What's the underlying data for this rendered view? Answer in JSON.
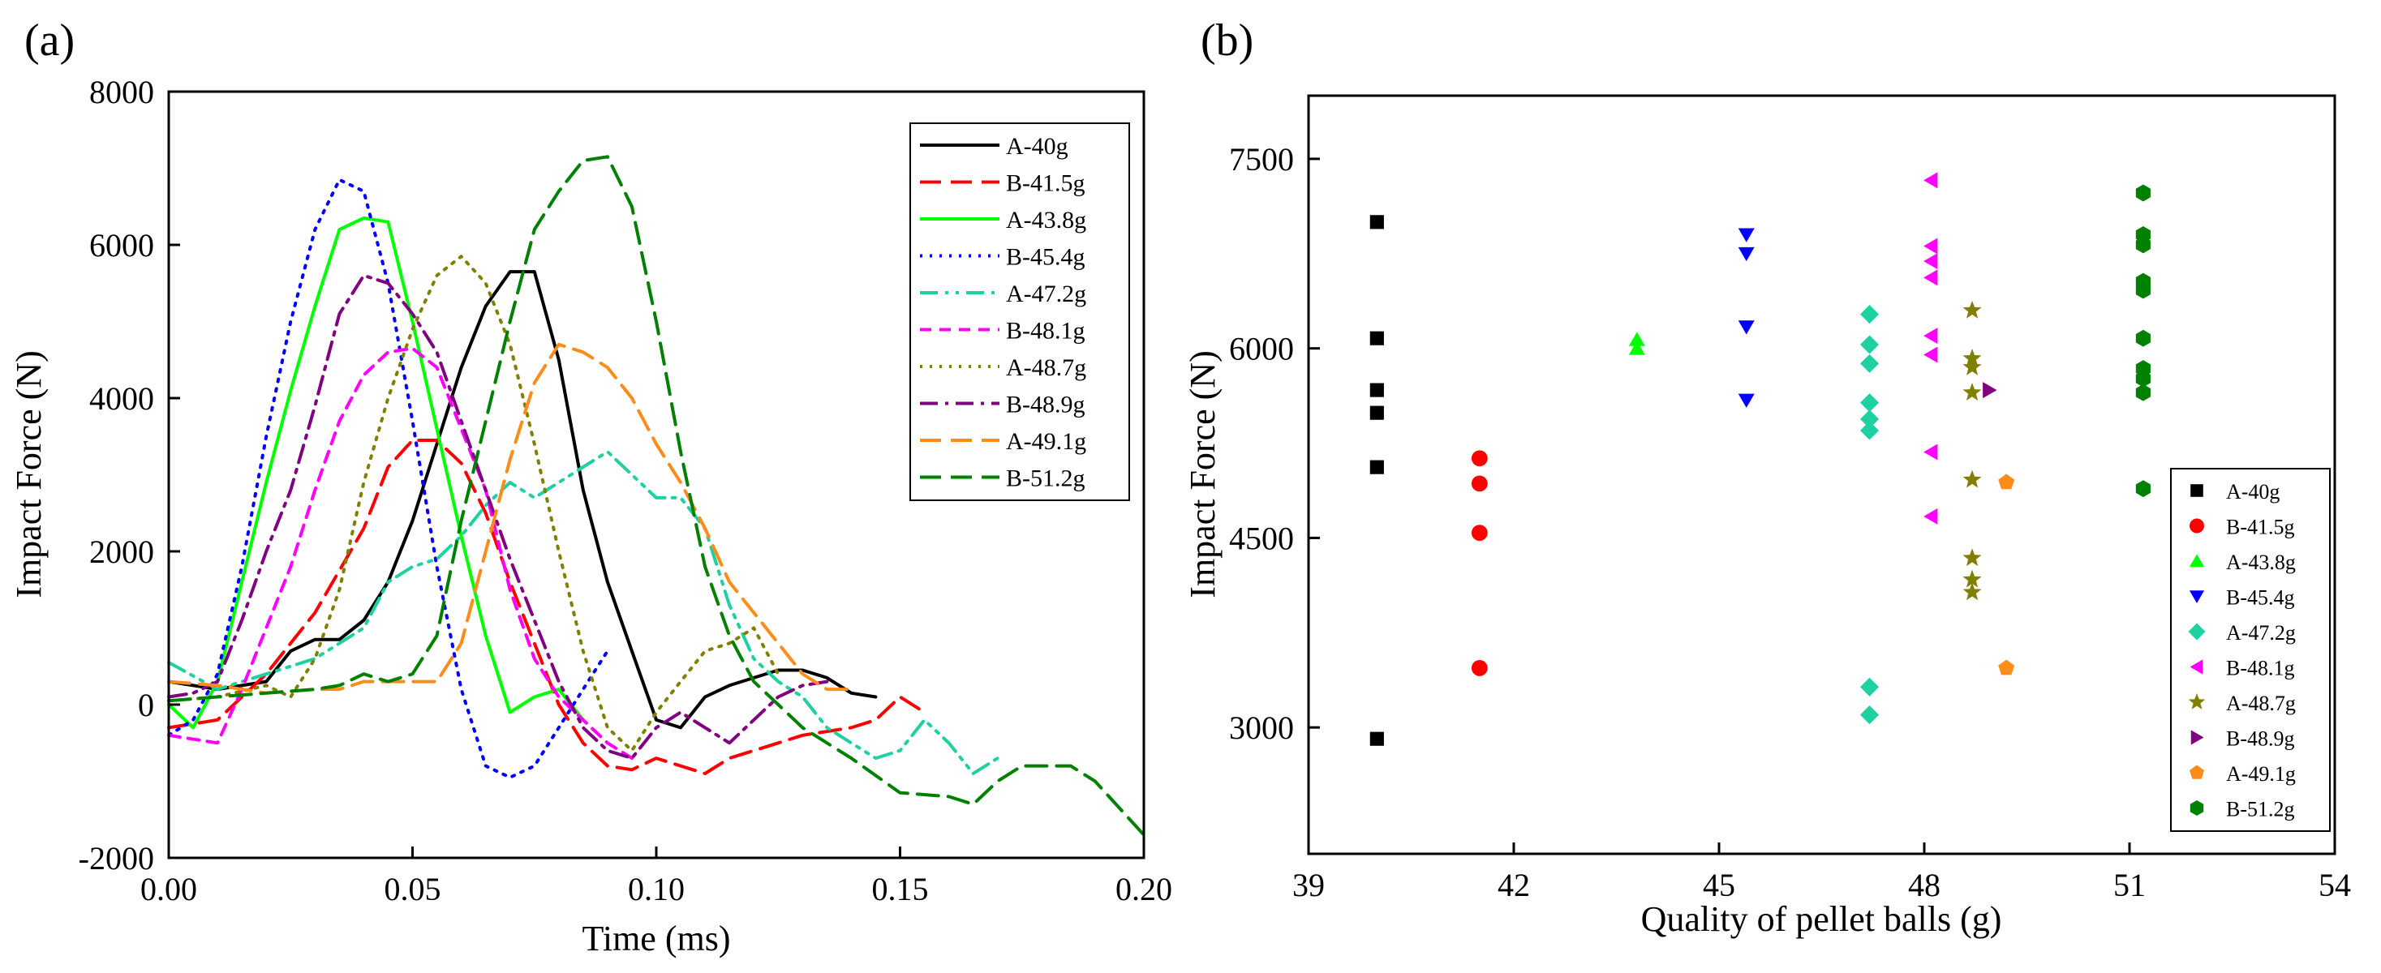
{
  "chart_data": [
    {
      "panel_label": "(a)",
      "type": "line",
      "xlabel": "Time (ms)",
      "ylabel": "Impact Force (N)",
      "xlim": [
        0,
        0.2
      ],
      "ylim": [
        -2000,
        8000
      ],
      "xticks": [
        "0.00",
        "0.05",
        "0.10",
        "0.15",
        "0.20"
      ],
      "yticks": [
        "-2000",
        "0",
        "2000",
        "4000",
        "6000",
        "8000"
      ],
      "grid": false,
      "legend_position": "top-right",
      "series": [
        {
          "name": "A-40g",
          "color": "#000000",
          "dash": "solid",
          "x": [
            0,
            0.01,
            0.02,
            0.025,
            0.03,
            0.035,
            0.04,
            0.045,
            0.05,
            0.055,
            0.06,
            0.065,
            0.07,
            0.075,
            0.08,
            0.085,
            0.09,
            0.095,
            0.1,
            0.105,
            0.11,
            0.115,
            0.12,
            0.125,
            0.13,
            0.135,
            0.14,
            0.145
          ],
          "y": [
            300,
            200,
            300,
            700,
            850,
            850,
            1100,
            1600,
            2400,
            3400,
            4400,
            5200,
            5650,
            5650,
            4500,
            2800,
            1600,
            700,
            -200,
            -300,
            100,
            250,
            350,
            450,
            450,
            350,
            150,
            100
          ]
        },
        {
          "name": "B-41.5g",
          "color": "#ff0000",
          "dash": "long",
          "x": [
            0,
            0.01,
            0.02,
            0.03,
            0.04,
            0.045,
            0.05,
            0.055,
            0.06,
            0.065,
            0.07,
            0.075,
            0.08,
            0.085,
            0.09,
            0.095,
            0.1,
            0.105,
            0.11,
            0.115,
            0.12,
            0.125,
            0.13,
            0.14,
            0.145,
            0.15,
            0.155
          ],
          "y": [
            -300,
            -200,
            400,
            1200,
            2300,
            3100,
            3450,
            3450,
            3150,
            2500,
            1600,
            800,
            0,
            -500,
            -800,
            -850,
            -700,
            -800,
            -900,
            -700,
            -600,
            -500,
            -400,
            -300,
            -200,
            100,
            -100
          ]
        },
        {
          "name": "A-43.8g",
          "color": "#00ff00",
          "dash": "solid",
          "x": [
            0,
            0.005,
            0.01,
            0.015,
            0.02,
            0.025,
            0.03,
            0.035,
            0.04,
            0.045,
            0.05,
            0.055,
            0.06,
            0.065,
            0.07,
            0.075,
            0.08,
            0.085
          ],
          "y": [
            0,
            -300,
            300,
            1600,
            2900,
            4100,
            5200,
            6200,
            6350,
            6300,
            5000,
            3600,
            2200,
            900,
            -100,
            100,
            200,
            -200
          ]
        },
        {
          "name": "B-45.4g",
          "color": "#0000ff",
          "dash": "dotted",
          "x": [
            0,
            0.005,
            0.01,
            0.015,
            0.02,
            0.025,
            0.03,
            0.035,
            0.04,
            0.045,
            0.05,
            0.055,
            0.06,
            0.065,
            0.07,
            0.075,
            0.08,
            0.085,
            0.09
          ],
          "y": [
            -400,
            -200,
            400,
            1800,
            3500,
            5000,
            6200,
            6850,
            6700,
            5500,
            3700,
            1800,
            200,
            -800,
            -950,
            -800,
            -300,
            200,
            700
          ]
        },
        {
          "name": "A-47.2g",
          "color": "#1fd0a0",
          "dash": "dashdotdot",
          "x": [
            0,
            0.01,
            0.02,
            0.03,
            0.04,
            0.045,
            0.05,
            0.055,
            0.06,
            0.065,
            0.07,
            0.075,
            0.08,
            0.085,
            0.09,
            0.095,
            0.1,
            0.105,
            0.11,
            0.115,
            0.12,
            0.125,
            0.13,
            0.135,
            0.14,
            0.145,
            0.15,
            0.155,
            0.16,
            0.165,
            0.17
          ],
          "y": [
            550,
            200,
            400,
            600,
            1000,
            1600,
            1800,
            1900,
            2200,
            2600,
            2900,
            2700,
            2900,
            3100,
            3300,
            3000,
            2700,
            2700,
            2300,
            1300,
            600,
            300,
            100,
            -300,
            -500,
            -700,
            -600,
            -200,
            -500,
            -900,
            -700
          ]
        },
        {
          "name": "B-48.1g",
          "color": "#ff00ff",
          "dash": "short",
          "x": [
            0,
            0.01,
            0.015,
            0.02,
            0.025,
            0.03,
            0.035,
            0.04,
            0.045,
            0.05,
            0.055,
            0.06,
            0.065,
            0.07,
            0.075,
            0.08,
            0.085,
            0.09,
            0.095
          ],
          "y": [
            -400,
            -500,
            200,
            1000,
            1800,
            2800,
            3700,
            4300,
            4600,
            4650,
            4400,
            3600,
            2800,
            1500,
            600,
            100,
            -200,
            -500,
            -700
          ]
        },
        {
          "name": "A-48.7g",
          "color": "#808000",
          "dash": "dotted",
          "x": [
            0,
            0.01,
            0.02,
            0.025,
            0.03,
            0.035,
            0.04,
            0.045,
            0.05,
            0.055,
            0.06,
            0.065,
            0.07,
            0.075,
            0.08,
            0.085,
            0.09,
            0.095,
            0.1,
            0.105,
            0.11,
            0.115,
            0.12,
            0.125
          ],
          "y": [
            50,
            100,
            250,
            100,
            600,
            1500,
            2900,
            4000,
            4900,
            5600,
            5850,
            5500,
            4700,
            3400,
            2000,
            700,
            -300,
            -600,
            -100,
            300,
            700,
            800,
            1000,
            400
          ]
        },
        {
          "name": "B-48.9g",
          "color": "#800080",
          "dash": "dashdot",
          "x": [
            0,
            0.005,
            0.01,
            0.015,
            0.02,
            0.025,
            0.03,
            0.035,
            0.04,
            0.045,
            0.05,
            0.055,
            0.06,
            0.065,
            0.07,
            0.075,
            0.08,
            0.085,
            0.09,
            0.095,
            0.1,
            0.105,
            0.11,
            0.115,
            0.12,
            0.125,
            0.13,
            0.135
          ],
          "y": [
            100,
            150,
            300,
            1100,
            2000,
            2800,
            3900,
            5100,
            5600,
            5500,
            5100,
            4600,
            3700,
            2800,
            1900,
            1100,
            300,
            -300,
            -600,
            -700,
            -300,
            -100,
            -300,
            -500,
            -200,
            100,
            250,
            300
          ]
        },
        {
          "name": "A-49.1g",
          "color": "#ff8c1a",
          "dash": "long",
          "x": [
            0,
            0.01,
            0.02,
            0.03,
            0.035,
            0.04,
            0.045,
            0.05,
            0.055,
            0.06,
            0.065,
            0.07,
            0.075,
            0.08,
            0.085,
            0.09,
            0.095,
            0.1,
            0.105,
            0.11,
            0.115,
            0.12,
            0.125,
            0.13,
            0.135,
            0.14
          ],
          "y": [
            300,
            250,
            150,
            200,
            200,
            300,
            300,
            300,
            300,
            800,
            2000,
            3200,
            4200,
            4700,
            4600,
            4400,
            4000,
            3400,
            2900,
            2300,
            1600,
            1200,
            800,
            400,
            200,
            200
          ]
        },
        {
          "name": "B-51.2g",
          "color": "#008000",
          "dash": "long",
          "x": [
            0,
            0.01,
            0.02,
            0.03,
            0.035,
            0.04,
            0.045,
            0.05,
            0.055,
            0.06,
            0.065,
            0.07,
            0.075,
            0.08,
            0.085,
            0.09,
            0.095,
            0.1,
            0.105,
            0.11,
            0.115,
            0.12,
            0.125,
            0.13,
            0.14,
            0.15,
            0.16,
            0.165,
            0.17,
            0.175,
            0.18,
            0.185,
            0.19,
            0.2
          ],
          "y": [
            50,
            100,
            150,
            200,
            250,
            400,
            300,
            400,
            900,
            2400,
            3700,
            5000,
            6200,
            6700,
            7100,
            7150,
            6500,
            5000,
            3300,
            1800,
            900,
            300,
            0,
            -300,
            -700,
            -1150,
            -1200,
            -1300,
            -1000,
            -800,
            -800,
            -800,
            -1000,
            -1700
          ]
        }
      ]
    },
    {
      "panel_label": "(b)",
      "type": "scatter",
      "xlabel": "Quality of pellet balls (g)",
      "ylabel": "Impact Force (N)",
      "xlim": [
        39,
        54
      ],
      "ylim": [
        2000,
        8000
      ],
      "xticks": [
        "39",
        "42",
        "45",
        "48",
        "51",
        "54"
      ],
      "yticks": [
        "3000",
        "4500",
        "6000",
        "7500"
      ],
      "grid": false,
      "legend_position": "bottom-right",
      "series": [
        {
          "name": "A-40g",
          "color": "#000000",
          "marker": "square",
          "x": 40,
          "values": [
            7000,
            6080,
            5670,
            5490,
            5060,
            2910
          ]
        },
        {
          "name": "B-41.5g",
          "color": "#ff0000",
          "marker": "circle",
          "x": 41.5,
          "values": [
            5130,
            4930,
            4540,
            3470
          ]
        },
        {
          "name": "A-43.8g",
          "color": "#00ff00",
          "marker": "triangle-up",
          "x": 43.8,
          "values": [
            6070,
            6000
          ]
        },
        {
          "name": "B-45.4g",
          "color": "#0000ff",
          "marker": "triangle-down",
          "x": 45.4,
          "values": [
            6900,
            6750,
            6170,
            5590
          ]
        },
        {
          "name": "A-47.2g",
          "color": "#1fd0a0",
          "marker": "diamond",
          "x": 47.2,
          "values": [
            6270,
            6030,
            5880,
            5570,
            5440,
            5350,
            3320,
            3100
          ]
        },
        {
          "name": "B-48.1g",
          "color": "#ff00ff",
          "marker": "triangle-left",
          "x": 48.1,
          "values": [
            7330,
            6810,
            6690,
            6560,
            6100,
            5950,
            5180,
            4670
          ]
        },
        {
          "name": "A-48.7g",
          "color": "#808000",
          "marker": "star",
          "x": 48.7,
          "values": [
            6300,
            5920,
            5850,
            5650,
            4960,
            4340,
            4170,
            4070
          ]
        },
        {
          "name": "B-48.9g",
          "color": "#800080",
          "marker": "triangle-right",
          "x": 48.95,
          "values": [
            5670
          ]
        },
        {
          "name": "A-49.1g",
          "color": "#ff8c1a",
          "marker": "pentagon",
          "x": 49.2,
          "values": [
            4940,
            3470
          ]
        },
        {
          "name": "B-51.2g",
          "color": "#008000",
          "marker": "hexagon",
          "x": 51.2,
          "values": [
            7230,
            6900,
            6820,
            6530,
            6460,
            6080,
            5840,
            5760,
            5650,
            4890
          ]
        }
      ]
    }
  ]
}
